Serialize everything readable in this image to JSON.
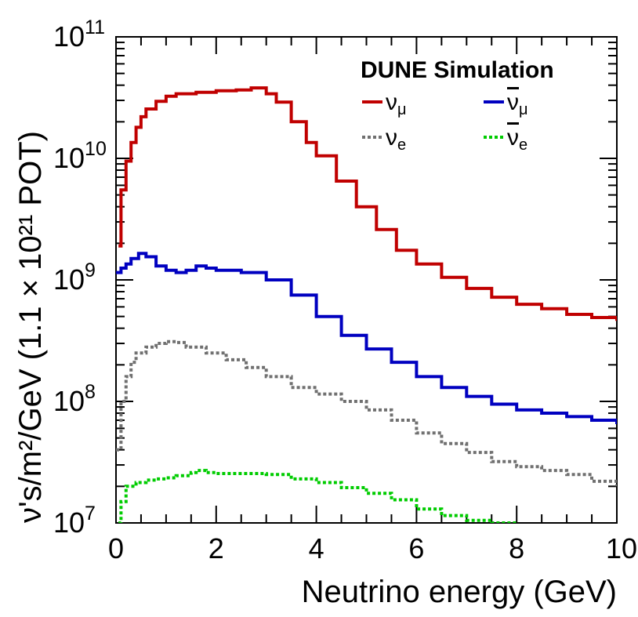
{
  "chart_data": {
    "type": "step-line",
    "title": "DUNE Simulation",
    "xlabel": "Neutrino energy (GeV)",
    "ylabel": "ν's/m²/GeV (1.1 × 10²¹ POT)",
    "xlim": [
      0,
      10
    ],
    "ylim": [
      10000000,
      100000000000
    ],
    "yscale": "log",
    "x_ticks": [
      "0",
      "2",
      "4",
      "6",
      "8",
      "10"
    ],
    "y_ticks": [
      {
        "base": "10",
        "exp": "7",
        "value": 10000000
      },
      {
        "base": "10",
        "exp": "8",
        "value": 100000000
      },
      {
        "base": "10",
        "exp": "9",
        "value": 1000000000
      },
      {
        "base": "10",
        "exp": "10",
        "value": 10000000000
      },
      {
        "base": "10",
        "exp": "11",
        "value": 100000000000
      }
    ],
    "legend_position": "top-right",
    "series": [
      {
        "name": "ν_μ",
        "label_main": "ν",
        "label_sub": "μ",
        "bar": false,
        "color": "#c00000",
        "dash": "solid",
        "points": [
          [
            0.05,
            1900000000.0
          ],
          [
            0.1,
            5500000000.0
          ],
          [
            0.2,
            9500000000.0
          ],
          [
            0.3,
            13500000000.0
          ],
          [
            0.4,
            18000000000.0
          ],
          [
            0.5,
            22000000000.0
          ],
          [
            0.6,
            25500000000.0
          ],
          [
            0.8,
            29500000000.0
          ],
          [
            1.0,
            32500000000.0
          ],
          [
            1.2,
            34000000000.0
          ],
          [
            1.6,
            35000000000.0
          ],
          [
            2.0,
            36000000000.0
          ],
          [
            2.4,
            36500000000.0
          ],
          [
            2.7,
            38000000000.0
          ],
          [
            2.8,
            38000000000.0
          ],
          [
            3.0,
            34000000000.0
          ],
          [
            3.2,
            29000000000.0
          ],
          [
            3.5,
            20000000000.0
          ],
          [
            3.8,
            13500000000.0
          ],
          [
            4.0,
            10500000000.0
          ],
          [
            4.4,
            6500000000.0
          ],
          [
            4.8,
            4000000000.0
          ],
          [
            5.2,
            2600000000.0
          ],
          [
            5.6,
            1750000000.0
          ],
          [
            6.0,
            1350000000.0
          ],
          [
            6.5,
            1050000000.0
          ],
          [
            7.0,
            850000000.0
          ],
          [
            7.5,
            720000000.0
          ],
          [
            8.0,
            630000000.0
          ],
          [
            8.5,
            580000000.0
          ],
          [
            9.0,
            520000000.0
          ],
          [
            9.5,
            490000000.0
          ],
          [
            10.0,
            460000000.0
          ]
        ]
      },
      {
        "name": "ν̄_μ",
        "label_main": "ν",
        "label_sub": "μ",
        "bar": true,
        "color": "#0000c0",
        "dash": "solid",
        "points": [
          [
            0.0,
            1150000000.0
          ],
          [
            0.1,
            1250000000.0
          ],
          [
            0.2,
            1350000000.0
          ],
          [
            0.3,
            1500000000.0
          ],
          [
            0.45,
            1650000000.0
          ],
          [
            0.6,
            1550000000.0
          ],
          [
            0.8,
            1300000000.0
          ],
          [
            1.0,
            1200000000.0
          ],
          [
            1.2,
            1150000000.0
          ],
          [
            1.4,
            1200000000.0
          ],
          [
            1.6,
            1300000000.0
          ],
          [
            1.8,
            1250000000.0
          ],
          [
            2.0,
            1200000000.0
          ],
          [
            2.5,
            1150000000.0
          ],
          [
            3.0,
            1000000000.0
          ],
          [
            3.5,
            750000000.0
          ],
          [
            4.0,
            500000000.0
          ],
          [
            4.5,
            350000000.0
          ],
          [
            5.0,
            270000000.0
          ],
          [
            5.5,
            210000000.0
          ],
          [
            6.0,
            160000000.0
          ],
          [
            6.5,
            130000000.0
          ],
          [
            7.0,
            110000000.0
          ],
          [
            7.5,
            95000000.0
          ],
          [
            8.0,
            85000000.0
          ],
          [
            8.5,
            80000000.0
          ],
          [
            9.0,
            75000000.0
          ],
          [
            9.5,
            70000000.0
          ],
          [
            10.0,
            65000000.0
          ]
        ]
      },
      {
        "name": "ν_e",
        "label_main": "ν",
        "label_sub": "e",
        "bar": false,
        "color": "#707070",
        "dash": "dotted",
        "points": [
          [
            0.0,
            40000000.0
          ],
          [
            0.1,
            100000000.0
          ],
          [
            0.2,
            160000000.0
          ],
          [
            0.3,
            210000000.0
          ],
          [
            0.4,
            250000000.0
          ],
          [
            0.6,
            280000000.0
          ],
          [
            0.8,
            300000000.0
          ],
          [
            1.0,
            310000000.0
          ],
          [
            1.2,
            305000000.0
          ],
          [
            1.4,
            280000000.0
          ],
          [
            1.8,
            250000000.0
          ],
          [
            2.2,
            220000000.0
          ],
          [
            2.6,
            190000000.0
          ],
          [
            3.0,
            160000000.0
          ],
          [
            3.5,
            130000000.0
          ],
          [
            4.0,
            115000000.0
          ],
          [
            4.5,
            100000000.0
          ],
          [
            5.0,
            85000000.0
          ],
          [
            5.5,
            70000000.0
          ],
          [
            6.0,
            55000000.0
          ],
          [
            6.5,
            45000000.0
          ],
          [
            7.0,
            38000000.0
          ],
          [
            7.5,
            32000000.0
          ],
          [
            8.0,
            29000000.0
          ],
          [
            8.5,
            27000000.0
          ],
          [
            9.0,
            25000000.0
          ],
          [
            9.5,
            22000000.0
          ],
          [
            10.0,
            20000000.0
          ]
        ]
      },
      {
        "name": "ν̄_e",
        "label_main": "ν",
        "label_sub": "e",
        "bar": true,
        "color": "#00cc00",
        "dash": "dotted",
        "points": [
          [
            0.05,
            10000000.0
          ],
          [
            0.1,
            15000000.0
          ],
          [
            0.2,
            20000000.0
          ],
          [
            0.4,
            21500000.0
          ],
          [
            0.6,
            22500000.0
          ],
          [
            0.8,
            23000000.0
          ],
          [
            1.0,
            23500000.0
          ],
          [
            1.2,
            24500000.0
          ],
          [
            1.5,
            26000000.0
          ],
          [
            1.6,
            27000000.0
          ],
          [
            1.8,
            26000000.0
          ],
          [
            2.0,
            25500000.0
          ],
          [
            2.5,
            25500000.0
          ],
          [
            3.0,
            25000000.0
          ],
          [
            3.5,
            23000000.0
          ],
          [
            4.0,
            21500000.0
          ],
          [
            4.5,
            19500000.0
          ],
          [
            5.0,
            17500000.0
          ],
          [
            5.5,
            15500000.0
          ],
          [
            6.0,
            13000000.0
          ],
          [
            6.5,
            11500000.0
          ],
          [
            7.0,
            10500000.0
          ],
          [
            7.5,
            10000000.0
          ],
          [
            8.0,
            9800000.0
          ]
        ]
      }
    ]
  }
}
